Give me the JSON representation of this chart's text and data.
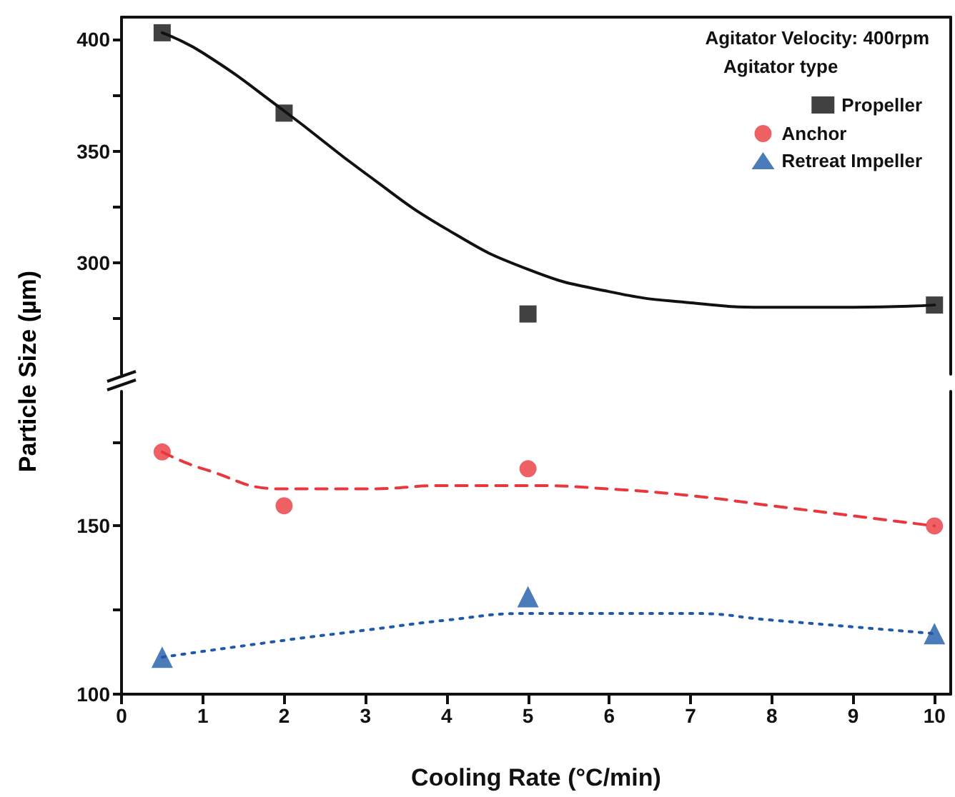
{
  "chart_data": [
    {
      "type": "scatter",
      "annotations": [
        "Agitator Velocity: 400rpm"
      ],
      "legend_title": "Agitator type",
      "legend": "top right",
      "tick_labels": "y",
      "xlim": [
        0,
        10.2
      ],
      "xticks": [
        0,
        1,
        2,
        3,
        4,
        5,
        6,
        7,
        8,
        9,
        10
      ],
      "ylim": [
        250,
        410
      ],
      "yticks": [
        {
          "value": 275,
          "label": null
        },
        300,
        {
          "value": 325,
          "label": null
        },
        350,
        {
          "value": 375,
          "label": null
        },
        400
      ],
      "series": [
        {
          "name": "Propeller",
          "marker": "square",
          "color": "#111111",
          "x": [
            0.5,
            2,
            5,
            10
          ],
          "values": [
            403,
            367,
            277,
            281
          ]
        },
        {
          "type": "line",
          "marker": "none",
          "line_style": "solid",
          "color": "#111111",
          "x": [
            0.5,
            1,
            2,
            3,
            4,
            5,
            6,
            7,
            8,
            9,
            10
          ],
          "values": [
            403,
            394,
            368,
            340,
            315,
            297,
            287,
            282,
            280,
            280,
            281
          ]
        }
      ]
    },
    {
      "type": "scatter",
      "legend": "top right",
      "xlabel": "Cooling Rate (°C/min)",
      "ylabel": "Particle Size (µm)",
      "xlim": [
        0,
        10.2
      ],
      "xticks": [
        0,
        1,
        2,
        3,
        4,
        5,
        6,
        7,
        8,
        9,
        10
      ],
      "ylim": [
        100,
        190
      ],
      "yticks": [
        100,
        {
          "value": 125,
          "label": null
        },
        150,
        {
          "value": 175,
          "label": null
        }
      ],
      "series": [
        {
          "name": "Anchor",
          "marker": "circle",
          "color": "#e8383d",
          "x": [
            0.5,
            2,
            5,
            10
          ],
          "values": [
            172,
            156,
            167,
            150
          ]
        },
        {
          "type": "line",
          "marker": "none",
          "line_style": "dashed",
          "color": "#e8383d",
          "x": [
            0.5,
            1,
            2,
            3,
            4,
            5,
            6,
            7,
            8,
            9,
            10
          ],
          "values": [
            172,
            167,
            161,
            161,
            162,
            162,
            161,
            159,
            156,
            153,
            150
          ]
        },
        {
          "name": "Retreat Impeller",
          "marker": "triangle",
          "color": "#1f5aa8",
          "x": [
            0.5,
            5,
            10
          ],
          "values": [
            111,
            129,
            118
          ]
        },
        {
          "type": "line",
          "marker": "none",
          "line_style": "dotted",
          "color": "#1f5aa8",
          "x": [
            0.5,
            2,
            3,
            4,
            5,
            6,
            7,
            8,
            9,
            10
          ],
          "values": [
            111,
            116,
            119,
            122,
            124,
            124,
            124,
            122,
            120,
            118
          ]
        }
      ]
    }
  ]
}
